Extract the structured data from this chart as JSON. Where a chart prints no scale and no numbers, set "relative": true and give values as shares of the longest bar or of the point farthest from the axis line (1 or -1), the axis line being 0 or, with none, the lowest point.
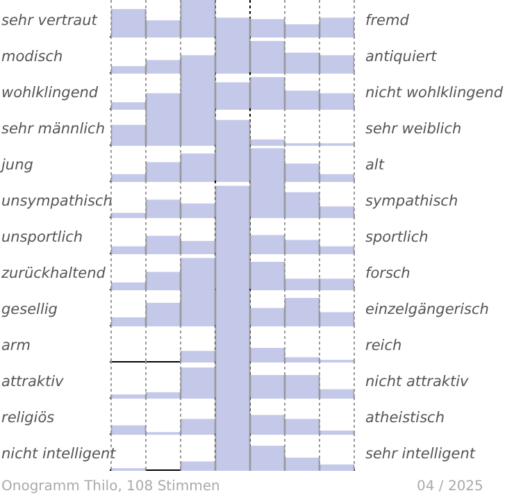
{
  "chart_data": [
    {
      "type": "bar",
      "relative": true,
      "grid": "x",
      "color": "#c4c9ea",
      "ylabel": "sehr vertraut",
      "y2label": "fremd",
      "categories": [
        null,
        null,
        null,
        null,
        null,
        null,
        null
      ],
      "values": [
        0.76,
        0.46,
        1,
        0.53,
        0.49,
        0.35,
        0.53
      ]
    },
    {
      "type": "bar",
      "relative": true,
      "grid": "x",
      "color": "#c4c9ea",
      "ylabel": "modisch",
      "y2label": "antiquiert",
      "categories": [
        null,
        null,
        null,
        null,
        null,
        null,
        null
      ],
      "values": [
        0.2,
        0.36,
        0.49,
        1,
        0.87,
        0.56,
        0.49
      ]
    },
    {
      "type": "bar",
      "relative": true,
      "grid": "x",
      "color": "#c4c9ea",
      "ylabel": "wohlklingend",
      "y2label": "nicht wohlklingend",
      "categories": [
        null,
        null,
        null,
        null,
        null,
        null,
        null
      ],
      "values": [
        0.2,
        0.44,
        1,
        0.73,
        0.87,
        0.51,
        0.44
      ]
    },
    {
      "type": "bar",
      "relative": true,
      "grid": "x",
      "color": "#c4c9ea",
      "ylabel": "sehr männlich",
      "y2label": "sehr weiblich",
      "categories": [
        null,
        null,
        null,
        null,
        null,
        null,
        null
      ],
      "values": [
        0.56,
        1,
        1,
        0.69,
        0.17,
        0.07,
        0.07
      ]
    },
    {
      "type": "bar",
      "relative": true,
      "grid": "x",
      "color": "#c4c9ea",
      "ylabel": "jung",
      "y2label": "alt",
      "categories": [
        null,
        null,
        null,
        null,
        null,
        null,
        null
      ],
      "values": [
        0.21,
        0.53,
        0.76,
        1,
        0.9,
        0.49,
        0.21
      ]
    },
    {
      "type": "bar",
      "relative": true,
      "grid": "x",
      "color": "#c4c9ea",
      "ylabel": "unsympathisch",
      "y2label": "sympathisch",
      "categories": [
        null,
        null,
        null,
        null,
        null,
        null,
        null
      ],
      "values": [
        0.14,
        0.49,
        0.39,
        0.86,
        1,
        0.69,
        0.31
      ]
    },
    {
      "type": "bar",
      "relative": true,
      "grid": "x",
      "color": "#c4c9ea",
      "ylabel": "unsportlich",
      "y2label": "sportlich",
      "categories": [
        null,
        null,
        null,
        null,
        null,
        null,
        null
      ],
      "values": [
        0.21,
        0.49,
        0.35,
        1,
        0.51,
        0.38,
        0.21
      ]
    },
    {
      "type": "bar",
      "relative": true,
      "grid": "x",
      "color": "#c4c9ea",
      "ylabel": "zurückhaltend",
      "y2label": "forsch",
      "categories": [
        null,
        null,
        null,
        null,
        null,
        null,
        null
      ],
      "values": [
        0.21,
        0.49,
        0.86,
        1,
        0.76,
        0.31,
        0.31
      ]
    },
    {
      "type": "bar",
      "relative": true,
      "grid": "x",
      "color": "#c4c9ea",
      "ylabel": "gesellig",
      "y2label": "einzelgängerisch",
      "categories": [
        null,
        null,
        null,
        null,
        null,
        null,
        null
      ],
      "values": [
        0.24,
        0.63,
        1,
        0.97,
        0.49,
        0.76,
        0.38
      ]
    },
    {
      "type": "bar",
      "relative": true,
      "grid": "x",
      "color": "#c4c9ea",
      "ylabel": "arm",
      "y2label": "reich",
      "categories": [
        null,
        null,
        null,
        null,
        null,
        null,
        null
      ],
      "values": [
        0,
        0,
        0.31,
        1,
        0.39,
        0.14,
        0.07
      ]
    },
    {
      "type": "bar",
      "relative": true,
      "grid": "x",
      "color": "#c4c9ea",
      "ylabel": "attraktiv",
      "y2label": "nicht attraktiv",
      "categories": [
        null,
        null,
        null,
        null,
        null,
        null,
        null
      ],
      "values": [
        0.11,
        0.17,
        0.83,
        1,
        0.63,
        0.63,
        0.25
      ]
    },
    {
      "type": "bar",
      "relative": true,
      "grid": "x",
      "color": "#c4c9ea",
      "ylabel": "religiös",
      "y2label": "atheistisch",
      "categories": [
        null,
        null,
        null,
        null,
        null,
        null,
        null
      ],
      "values": [
        0.25,
        0.07,
        0.42,
        1,
        0.53,
        0.42,
        0.11
      ]
    },
    {
      "type": "bar",
      "relative": true,
      "grid": "x",
      "color": "#c4c9ea",
      "ylabel": "nicht intelligent",
      "y2label": "sehr intelligent",
      "categories": [
        null,
        null,
        null,
        null,
        null,
        null,
        null
      ],
      "values": [
        0.07,
        0,
        0.25,
        1,
        0.67,
        0.35,
        0.17
      ],
      "annotations": [
        "Onogramm Thilo, 108 Stimmen",
        "04 / 2025"
      ]
    }
  ]
}
